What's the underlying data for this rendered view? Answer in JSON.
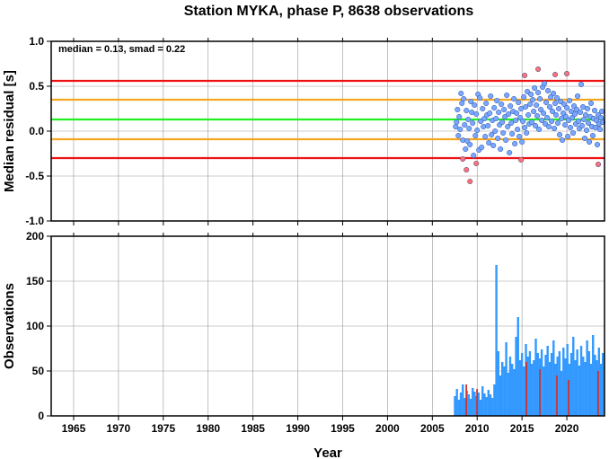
{
  "colors": {
    "outer_red": "#ee1111",
    "inner_orange": "#f5a623",
    "median_green": "#22ee22",
    "point_blue": "#7aa7ff",
    "point_red": "#ff7070",
    "bar_blue": "#3399ff",
    "bar_red": "#cc3333",
    "grid": "#999999"
  },
  "chart_data": [
    {
      "id": "residuals",
      "type": "scatter",
      "title": "Station MYKA, phase P, 8638 observations",
      "xlabel": "",
      "ylabel": "Median residual [s]",
      "annotation": "median = 0.13, smad = 0.22",
      "xlim": [
        1962.5,
        2024.2
      ],
      "ylim": [
        -1.0,
        1.0
      ],
      "x_ticks": [
        1965,
        1970,
        1975,
        1980,
        1985,
        1990,
        1995,
        2000,
        2005,
        2010,
        2015,
        2020
      ],
      "y_ticks": [
        1.0,
        0.5,
        0.0,
        -0.5,
        -1.0
      ],
      "y_tick_labels": [
        "1.0",
        "0.5",
        "0.0",
        "-0.5",
        "-1.0"
      ],
      "grid": true,
      "reference_lines": [
        {
          "value": 0.56,
          "color": "red"
        },
        {
          "value": 0.35,
          "color": "orange"
        },
        {
          "value": 0.13,
          "color": "green"
        },
        {
          "value": -0.09,
          "color": "orange"
        },
        {
          "value": -0.3,
          "color": "red"
        }
      ],
      "series": [
        {
          "color": "blue",
          "points": [
            [
              2007.6,
              0.05
            ],
            [
              2007.7,
              0.1
            ],
            [
              2007.8,
              0.24
            ],
            [
              2007.9,
              -0.05
            ],
            [
              2008.0,
              0.16
            ],
            [
              2008.1,
              0.02
            ],
            [
              2008.2,
              0.42
            ],
            [
              2008.3,
              0.31
            ],
            [
              2008.4,
              -0.1
            ],
            [
              2008.5,
              0.36
            ],
            [
              2008.6,
              0.07
            ],
            [
              2008.7,
              -0.2
            ],
            [
              2008.8,
              0.23
            ],
            [
              2008.9,
              -0.11
            ],
            [
              2009.0,
              0.13
            ],
            [
              2009.1,
              0.03
            ],
            [
              2009.2,
              -0.15
            ],
            [
              2009.3,
              0.33
            ],
            [
              2009.4,
              0.21
            ],
            [
              2009.5,
              0.09
            ],
            [
              2009.6,
              -0.27
            ],
            [
              2009.7,
              0.29
            ],
            [
              2009.8,
              -0.05
            ],
            [
              2009.9,
              0.19
            ],
            [
              2010.0,
              0.01
            ],
            [
              2010.1,
              0.41
            ],
            [
              2010.2,
              -0.21
            ],
            [
              2010.3,
              0.37
            ],
            [
              2010.4,
              0.11
            ],
            [
              2010.5,
              -0.18
            ],
            [
              2010.6,
              0.25
            ],
            [
              2010.7,
              0.05
            ],
            [
              2010.8,
              0.14
            ],
            [
              2010.9,
              -0.06
            ],
            [
              2011.0,
              0.31
            ],
            [
              2011.1,
              0.18
            ],
            [
              2011.2,
              0.06
            ],
            [
              2011.3,
              -0.13
            ],
            [
              2011.4,
              0.2
            ],
            [
              2011.5,
              0.39
            ],
            [
              2011.6,
              -0.04
            ],
            [
              2011.7,
              0.12
            ],
            [
              2011.8,
              -0.16
            ],
            [
              2011.9,
              0.26
            ],
            [
              2012.0,
              0.0
            ],
            [
              2012.1,
              0.14
            ],
            [
              2012.2,
              0.34
            ],
            [
              2012.3,
              -0.08
            ],
            [
              2012.4,
              0.21
            ],
            [
              2012.5,
              0.07
            ],
            [
              2012.6,
              -0.2
            ],
            [
              2012.7,
              0.3
            ],
            [
              2012.8,
              0.1
            ],
            [
              2012.9,
              -0.02
            ],
            [
              2013.0,
              0.24
            ],
            [
              2013.1,
              0.16
            ],
            [
              2013.2,
              -0.1
            ],
            [
              2013.3,
              0.4
            ],
            [
              2013.4,
              0.05
            ],
            [
              2013.5,
              0.19
            ],
            [
              2013.6,
              -0.24
            ],
            [
              2013.7,
              0.28
            ],
            [
              2013.8,
              0.09
            ],
            [
              2013.9,
              -0.03
            ],
            [
              2014.0,
              0.22
            ],
            [
              2014.1,
              0.36
            ],
            [
              2014.2,
              -0.14
            ],
            [
              2014.3,
              0.12
            ],
            [
              2014.4,
              0.2
            ],
            [
              2014.5,
              0.02
            ],
            [
              2014.6,
              0.32
            ],
            [
              2014.7,
              -0.06
            ],
            [
              2014.8,
              0.15
            ],
            [
              2014.9,
              0.25
            ],
            [
              2015.0,
              -0.12
            ],
            [
              2015.1,
              0.11
            ],
            [
              2015.2,
              0.38
            ],
            [
              2015.3,
              0.04
            ],
            [
              2015.4,
              0.27
            ],
            [
              2015.5,
              -0.02
            ],
            [
              2015.6,
              0.44
            ],
            [
              2015.7,
              0.18
            ],
            [
              2015.8,
              0.08
            ],
            [
              2015.9,
              0.3
            ],
            [
              2016.0,
              0.41
            ],
            [
              2016.1,
              0.1
            ],
            [
              2016.2,
              0.35
            ],
            [
              2016.3,
              0.22
            ],
            [
              2016.4,
              0.48
            ],
            [
              2016.5,
              0.06
            ],
            [
              2016.6,
              0.29
            ],
            [
              2016.7,
              0.17
            ],
            [
              2016.8,
              0.43
            ],
            [
              2016.9,
              0.02
            ],
            [
              2017.0,
              0.36
            ],
            [
              2017.1,
              0.24
            ],
            [
              2017.2,
              0.12
            ],
            [
              2017.3,
              0.49
            ],
            [
              2017.4,
              0.2
            ],
            [
              2017.5,
              0.53
            ],
            [
              2017.6,
              0.08
            ],
            [
              2017.7,
              0.32
            ],
            [
              2017.8,
              0.15
            ],
            [
              2017.9,
              0.45
            ],
            [
              2018.0,
              0.05
            ],
            [
              2018.1,
              0.27
            ],
            [
              2018.2,
              0.38
            ],
            [
              2018.3,
              0.11
            ],
            [
              2018.4,
              0.22
            ],
            [
              2018.5,
              0.42
            ],
            [
              2018.6,
              0.03
            ],
            [
              2018.7,
              0.31
            ],
            [
              2018.8,
              0.18
            ],
            [
              2018.9,
              0.37
            ],
            [
              2019.0,
              0.09
            ],
            [
              2019.1,
              0.25
            ],
            [
              2019.2,
              -0.04
            ],
            [
              2019.3,
              0.33
            ],
            [
              2019.4,
              0.14
            ],
            [
              2019.5,
              -0.1
            ],
            [
              2019.6,
              0.2
            ],
            [
              2019.7,
              0.3
            ],
            [
              2019.8,
              0.07
            ],
            [
              2019.9,
              0.16
            ],
            [
              2020.0,
              0.26
            ],
            [
              2020.1,
              -0.06
            ],
            [
              2020.2,
              0.12
            ],
            [
              2020.3,
              0.34
            ],
            [
              2020.4,
              0.04
            ],
            [
              2020.5,
              0.22
            ],
            [
              2020.6,
              0.15
            ],
            [
              2020.7,
              -0.02
            ],
            [
              2020.8,
              0.28
            ],
            [
              2020.9,
              0.19
            ],
            [
              2021.0,
              0.08
            ],
            [
              2021.1,
              0.24
            ],
            [
              2021.2,
              0.39
            ],
            [
              2021.3,
              0.11
            ],
            [
              2021.4,
              0.03
            ],
            [
              2021.5,
              0.21
            ],
            [
              2021.6,
              0.52
            ],
            [
              2021.7,
              0.06
            ],
            [
              2021.8,
              0.27
            ],
            [
              2021.9,
              0.13
            ],
            [
              2022.0,
              -0.08
            ],
            [
              2022.1,
              0.18
            ],
            [
              2022.2,
              0.01
            ],
            [
              2022.3,
              0.25
            ],
            [
              2022.4,
              0.09
            ],
            [
              2022.5,
              -0.12
            ],
            [
              2022.6,
              0.16
            ],
            [
              2022.7,
              0.31
            ],
            [
              2022.8,
              0.05
            ],
            [
              2022.9,
              -0.05
            ],
            [
              2023.0,
              0.14
            ],
            [
              2023.1,
              0.23
            ],
            [
              2023.2,
              0.04
            ],
            [
              2023.3,
              0.12
            ],
            [
              2023.4,
              -0.15
            ],
            [
              2023.5,
              0.18
            ],
            [
              2023.6,
              0.08
            ],
            [
              2023.7,
              0.02
            ],
            [
              2023.8,
              0.15
            ],
            [
              2023.9,
              0.22
            ],
            [
              2024.0,
              0.1
            ]
          ]
        },
        {
          "color": "red",
          "points": [
            [
              2008.4,
              -0.31
            ],
            [
              2008.8,
              -0.43
            ],
            [
              2009.2,
              -0.56
            ],
            [
              2009.9,
              -0.36
            ],
            [
              2014.9,
              -0.32
            ],
            [
              2015.3,
              0.62
            ],
            [
              2016.8,
              0.69
            ],
            [
              2018.7,
              0.63
            ],
            [
              2020.0,
              0.64
            ],
            [
              2023.5,
              -0.37
            ]
          ]
        }
      ]
    },
    {
      "id": "observations",
      "type": "bar",
      "xlabel": "Year",
      "ylabel": "Observations",
      "xlim": [
        1962.5,
        2024.2
      ],
      "ylim": [
        0,
        200
      ],
      "x_ticks": [
        1965,
        1970,
        1975,
        1980,
        1985,
        1990,
        1995,
        2000,
        2005,
        2010,
        2015,
        2020
      ],
      "y_ticks": [
        200,
        150,
        100,
        50,
        0
      ],
      "y_tick_labels": [
        "200",
        "150",
        "100",
        "50",
        "0"
      ],
      "grid": true,
      "series": [
        {
          "color": "blue",
          "x": [
            2007.4,
            2007.62,
            2007.84,
            2008.06,
            2008.28,
            2008.5,
            2008.72,
            2008.94,
            2009.16,
            2009.38,
            2009.6,
            2009.82,
            2010.04,
            2010.26,
            2010.48,
            2010.7,
            2010.92,
            2011.14,
            2011.36,
            2011.58,
            2011.8,
            2012.02,
            2012.24,
            2012.46,
            2012.68,
            2012.9,
            2013.12,
            2013.34,
            2013.56,
            2013.78,
            2014.0,
            2014.22,
            2014.44,
            2014.66,
            2014.88,
            2015.1,
            2015.32,
            2015.54,
            2015.76,
            2015.98,
            2016.2,
            2016.42,
            2016.64,
            2016.86,
            2017.08,
            2017.3,
            2017.52,
            2017.74,
            2017.96,
            2018.18,
            2018.4,
            2018.62,
            2018.84,
            2019.06,
            2019.28,
            2019.5,
            2019.72,
            2019.94,
            2020.16,
            2020.38,
            2020.6,
            2020.82,
            2021.04,
            2021.26,
            2021.48,
            2021.7,
            2021.92,
            2022.14,
            2022.36,
            2022.58,
            2022.8,
            2023.02,
            2023.24,
            2023.46,
            2023.68,
            2023.9
          ],
          "values": [
            22,
            30,
            18,
            26,
            35,
            20,
            28,
            24,
            19,
            31,
            27,
            22,
            26,
            18,
            33,
            25,
            21,
            29,
            24,
            20,
            35,
            168,
            72,
            45,
            60,
            55,
            82,
            48,
            66,
            58,
            52,
            88,
            110,
            62,
            70,
            55,
            80,
            66,
            72,
            58,
            62,
            86,
            70,
            64,
            74,
            55,
            68,
            78,
            60,
            70,
            84,
            58,
            66,
            72,
            50,
            76,
            64,
            80,
            58,
            70,
            88,
            62,
            74,
            56,
            78,
            66,
            60,
            84,
            72,
            58,
            90,
            68,
            62,
            76,
            58,
            70
          ]
        },
        {
          "color": "red",
          "x": [
            2008.7,
            2009.9,
            2015.4,
            2016.9,
            2018.8,
            2020.1,
            2023.4
          ],
          "values": [
            35,
            30,
            60,
            52,
            45,
            40,
            50
          ]
        }
      ]
    }
  ]
}
